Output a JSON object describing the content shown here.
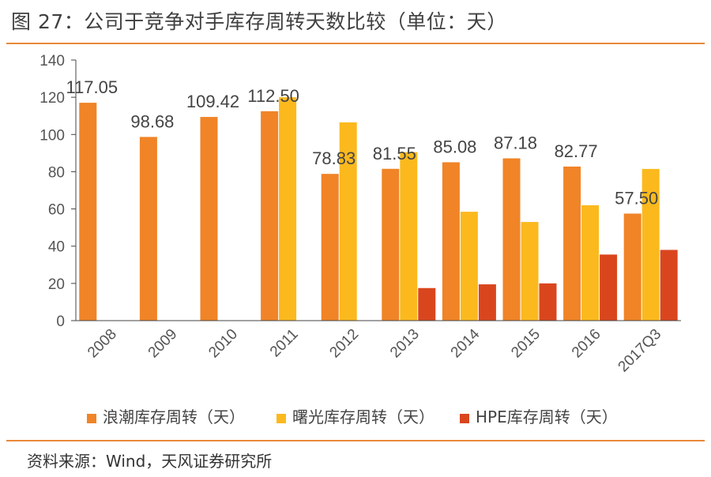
{
  "figure": {
    "title": "图 27：公司于竞争对手库存周转天数比较（单位：天）",
    "source": "资料来源：Wind，天风证券研究所"
  },
  "chart_data": {
    "type": "bar",
    "title": "",
    "xlabel": "",
    "ylabel": "",
    "ylim": [
      0,
      140
    ],
    "yticks": [
      0,
      20,
      40,
      60,
      80,
      100,
      120,
      140
    ],
    "categories": [
      "2008",
      "2009",
      "2010",
      "2011",
      "2012",
      "2013",
      "2014",
      "2015",
      "2016",
      "2017Q3"
    ],
    "legend_position": "bottom",
    "grid": false,
    "series": [
      {
        "name": "浪潮库存周转（天）",
        "color": "#F08427",
        "values": [
          117.05,
          98.68,
          109.42,
          112.5,
          78.83,
          81.55,
          85.08,
          87.18,
          82.77,
          57.5
        ],
        "labels": [
          "117.05",
          "98.68",
          "109.42",
          "112.50",
          "78.83",
          "81.55",
          "85.08",
          "87.18",
          "82.77",
          "57.50"
        ]
      },
      {
        "name": "曙光库存周转（天）",
        "color": "#FBB91E",
        "values": [
          null,
          null,
          null,
          120,
          106.5,
          90.5,
          58.5,
          53,
          62,
          81.5
        ]
      },
      {
        "name": "HPE库存周转（天）",
        "color": "#D9461E",
        "values": [
          null,
          null,
          null,
          null,
          null,
          17.5,
          19.5,
          20,
          35.5,
          38
        ]
      }
    ]
  }
}
